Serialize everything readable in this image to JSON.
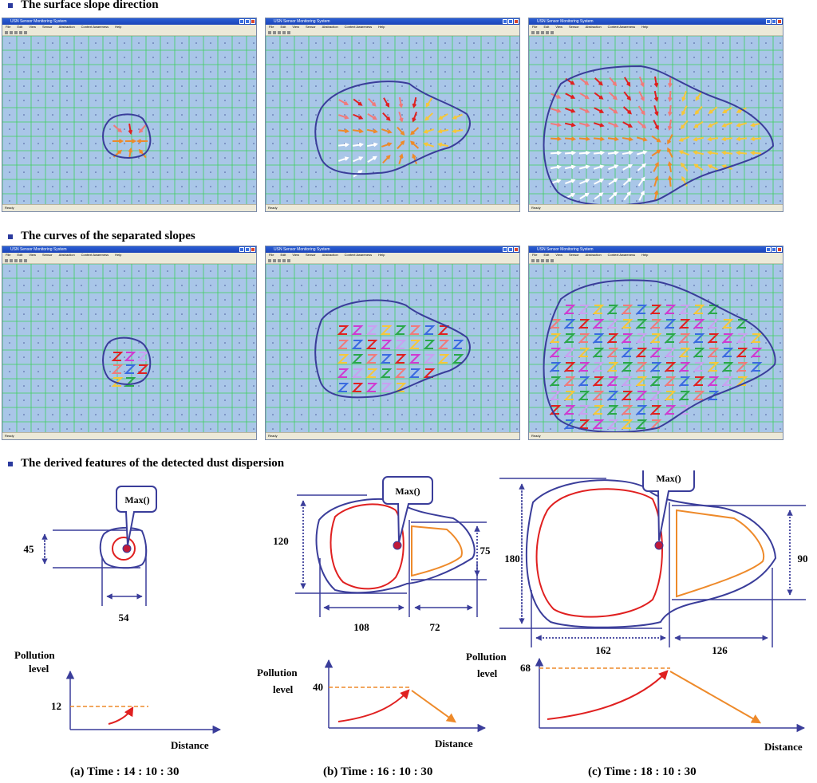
{
  "sections": {
    "slope_title": "The surface slope direction",
    "curves_title": "The curves  of the separated slopes",
    "features_title": "The derived features of the detected dust dispersion"
  },
  "window": {
    "title": "USN Sensor Monitoring System",
    "menu": [
      "File",
      "Edit",
      "View",
      "Sensor",
      "Abstraction",
      "Context Awareness",
      "Help"
    ],
    "status_left": "Ready"
  },
  "panels": [
    {
      "max_label": "Max()",
      "height_label": "45",
      "width1_label": "54",
      "pollution_label_line1": "Pollution",
      "pollution_label_line2": "level",
      "pollution_value": "12",
      "distance_label": "Distance",
      "caption": "(a) Time : 14 : 10 : 30"
    },
    {
      "max_label": "Max()",
      "height_label": "120",
      "height2_label": "75",
      "width1_label": "108",
      "width2_label": "72",
      "pollution_label_line1": "Pollution",
      "pollution_label_line2": "level",
      "pollution_value": "40",
      "distance_label": "Distance",
      "caption": "(b) Time : 16 : 10 : 30"
    },
    {
      "max_label": "Max()",
      "height_label": "180",
      "height2_label": "90",
      "width1_label": "162",
      "width2_label": "126",
      "pollution_label_line1": "Pollution",
      "pollution_label_line2": "level",
      "pollution_value": "68",
      "distance_label": "Distance",
      "caption": "(c) Time : 18 : 10 : 30"
    }
  ],
  "colors": {
    "grid": "#3fcf5f",
    "map_bg": "#a9c6e8",
    "outline": "#3a3d9a",
    "red": "#e02020",
    "orange": "#ee8a2a",
    "pink": "#f07a7a",
    "yellow": "#f6c73a"
  }
}
